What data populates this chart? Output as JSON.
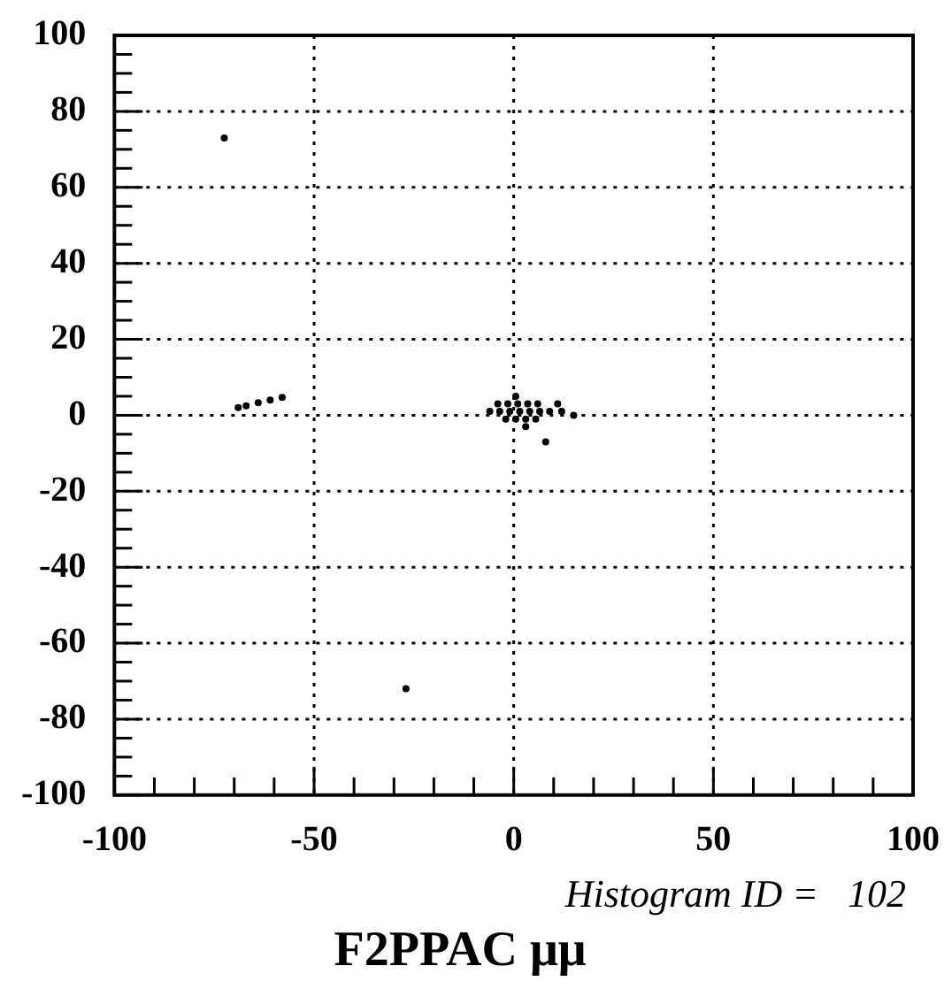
{
  "chart_data": {
    "type": "scatter",
    "title": "F2PPAC μμ",
    "annotations": [
      "Histogram ID =   102"
    ],
    "x": [
      -4,
      -1.5,
      1,
      3.5,
      6,
      11,
      -6,
      -3.5,
      -1,
      1.5,
      4,
      6.5,
      9,
      12,
      -2,
      0.5,
      3,
      5.5,
      0.5,
      3,
      15,
      -69,
      -67,
      -64,
      -61,
      -58,
      -72.5,
      -27,
      8
    ],
    "values": [
      3,
      3,
      3,
      3,
      3,
      3,
      1,
      1,
      1,
      1,
      1,
      1,
      1,
      1,
      -1,
      -1,
      -1,
      -1,
      5,
      -3,
      0,
      2,
      2.5,
      3.3,
      4,
      4.7,
      73,
      -72,
      -7
    ],
    "color": "#000000",
    "marker": "circle",
    "xlim": [
      -100,
      100
    ],
    "ylim": [
      -100,
      100
    ],
    "xticks": [
      -100,
      {
        "value": -90,
        "label": null
      },
      {
        "value": -80,
        "label": null
      },
      {
        "value": -70,
        "label": null
      },
      {
        "value": -60,
        "label": null
      },
      -50,
      {
        "value": -40,
        "label": null
      },
      {
        "value": -30,
        "label": null
      },
      {
        "value": -20,
        "label": null
      },
      {
        "value": -10,
        "label": null
      },
      0,
      {
        "value": 10,
        "label": null
      },
      {
        "value": 20,
        "label": null
      },
      {
        "value": 30,
        "label": null
      },
      {
        "value": 40,
        "label": null
      },
      50,
      {
        "value": 60,
        "label": null
      },
      {
        "value": 70,
        "label": null
      },
      {
        "value": 80,
        "label": null
      },
      {
        "value": 90,
        "label": null
      },
      100
    ],
    "yticks": [
      -100,
      {
        "value": -95,
        "label": null
      },
      {
        "value": -90,
        "label": null
      },
      {
        "value": -85,
        "label": null
      },
      -80,
      {
        "value": -75,
        "label": null
      },
      {
        "value": -70,
        "label": null
      },
      {
        "value": -65,
        "label": null
      },
      -60,
      {
        "value": -55,
        "label": null
      },
      {
        "value": -50,
        "label": null
      },
      {
        "value": -45,
        "label": null
      },
      -40,
      {
        "value": -35,
        "label": null
      },
      {
        "value": -30,
        "label": null
      },
      {
        "value": -25,
        "label": null
      },
      -20,
      {
        "value": -15,
        "label": null
      },
      {
        "value": -10,
        "label": null
      },
      {
        "value": -5,
        "label": null
      },
      0,
      {
        "value": 5,
        "label": null
      },
      {
        "value": 10,
        "label": null
      },
      {
        "value": 15,
        "label": null
      },
      20,
      {
        "value": 25,
        "label": null
      },
      {
        "value": 30,
        "label": null
      },
      {
        "value": 35,
        "label": null
      },
      40,
      {
        "value": 45,
        "label": null
      },
      {
        "value": 50,
        "label": null
      },
      {
        "value": 55,
        "label": null
      },
      60,
      {
        "value": 65,
        "label": null
      },
      {
        "value": 70,
        "label": null
      },
      {
        "value": 75,
        "label": null
      },
      80,
      {
        "value": 85,
        "label": null
      },
      {
        "value": 90,
        "label": null
      },
      {
        "value": 95,
        "label": null
      },
      100
    ],
    "grid": true,
    "legend": false
  }
}
